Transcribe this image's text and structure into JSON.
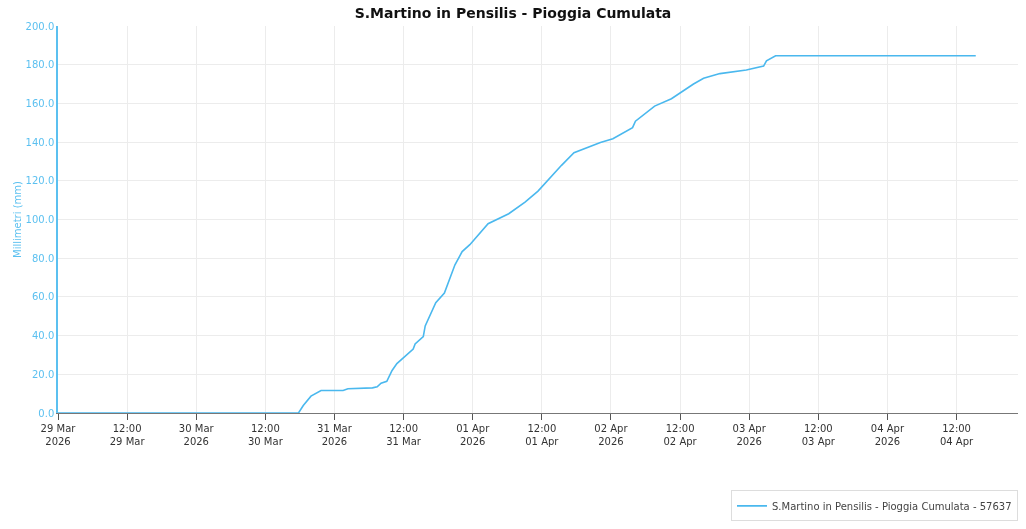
{
  "chart_data": {
    "type": "line",
    "title": "S.Martino in Pensilis - Pioggia Cumulata",
    "ylabel": "Millimetri (mm)",
    "series": [
      {
        "name": "S.Martino in Pensilis - Pioggia Cumulata - 57637",
        "color": "#4ab8ee",
        "x": [
          "2026-03-29T00:00",
          "2026-03-30T17:45",
          "2026-03-30T18:35",
          "2026-03-30T19:55",
          "2026-03-30T21:40",
          "2026-03-31T01:30",
          "2026-03-31T02:20",
          "2026-03-31T06:35",
          "2026-03-31T07:25",
          "2026-03-31T08:05",
          "2026-03-31T09:05",
          "2026-03-31T10:00",
          "2026-03-31T10:50",
          "2026-03-31T13:40",
          "2026-03-31T14:00",
          "2026-03-31T15:25",
          "2026-03-31T15:45",
          "2026-03-31T17:35",
          "2026-03-31T19:05",
          "2026-03-31T20:55",
          "2026-03-31T22:10",
          "2026-03-31T23:30",
          "2026-04-01T02:40",
          "2026-04-01T06:15",
          "2026-04-01T09:05",
          "2026-04-01T11:20",
          "2026-04-01T15:25",
          "2026-04-01T17:35",
          "2026-04-01T22:10",
          "2026-04-02T00:20",
          "2026-04-02T03:45",
          "2026-04-02T04:15",
          "2026-04-02T07:35",
          "2026-04-02T10:30",
          "2026-04-02T14:20",
          "2026-04-02T16:05",
          "2026-04-02T18:55",
          "2026-04-02T23:30",
          "2026-04-03T02:30",
          "2026-04-03T03:00",
          "2026-04-03T04:35",
          "2026-04-04T15:20"
        ],
        "values": [
          0,
          0,
          3.9,
          8.7,
          11.6,
          11.6,
          12.5,
          13,
          13.5,
          15.4,
          16.4,
          22,
          25.5,
          33,
          35.7,
          39.5,
          45,
          57,
          62,
          76.6,
          83.4,
          87,
          97.8,
          103,
          109,
          114.7,
          128,
          134.5,
          139.8,
          141.7,
          147.5,
          150.8,
          158.6,
          162.4,
          170,
          173,
          175.4,
          177.3,
          179.3,
          182,
          184.6,
          184.6
        ]
      }
    ],
    "xlim": [
      "2026-03-29T00:00",
      "2026-04-04T22:40"
    ],
    "xticks": [
      {
        "value": "2026-03-29T00:00",
        "label": "29 Mar\n2026"
      },
      {
        "value": "2026-03-29T12:00",
        "label": "12:00\n29 Mar"
      },
      {
        "value": "2026-03-30T00:00",
        "label": "30 Mar\n2026"
      },
      {
        "value": "2026-03-30T12:00",
        "label": "12:00\n30 Mar"
      },
      {
        "value": "2026-03-31T00:00",
        "label": "31 Mar\n2026"
      },
      {
        "value": "2026-03-31T12:00",
        "label": "12:00\n31 Mar"
      },
      {
        "value": "2026-04-01T00:00",
        "label": "01 Apr\n2026"
      },
      {
        "value": "2026-04-01T12:00",
        "label": "12:00\n01 Apr"
      },
      {
        "value": "2026-04-02T00:00",
        "label": "02 Apr\n2026"
      },
      {
        "value": "2026-04-02T12:00",
        "label": "12:00\n02 Apr"
      },
      {
        "value": "2026-04-03T00:00",
        "label": "03 Apr\n2026"
      },
      {
        "value": "2026-04-03T12:00",
        "label": "12:00\n03 Apr"
      },
      {
        "value": "2026-04-04T00:00",
        "label": "04 Apr\n2026"
      },
      {
        "value": "2026-04-04T12:00",
        "label": "12:00\n04 Apr"
      }
    ],
    "ylim": [
      0,
      200
    ],
    "yticks": [
      {
        "value": 0,
        "label": "0.0"
      },
      {
        "value": 20,
        "label": "20.0"
      },
      {
        "value": 40,
        "label": "40.0"
      },
      {
        "value": 60,
        "label": "60.0"
      },
      {
        "value": 80,
        "label": "80.0"
      },
      {
        "value": 100,
        "label": "100.0"
      },
      {
        "value": 120,
        "label": "120.0"
      },
      {
        "value": 140,
        "label": "140.0"
      },
      {
        "value": 160,
        "label": "160.0"
      },
      {
        "value": 180,
        "label": "180.0"
      },
      {
        "value": 200,
        "label": "200.0"
      }
    ],
    "grid": true,
    "legend": "bottom right",
    "marker": "none",
    "line_style": "solid"
  }
}
